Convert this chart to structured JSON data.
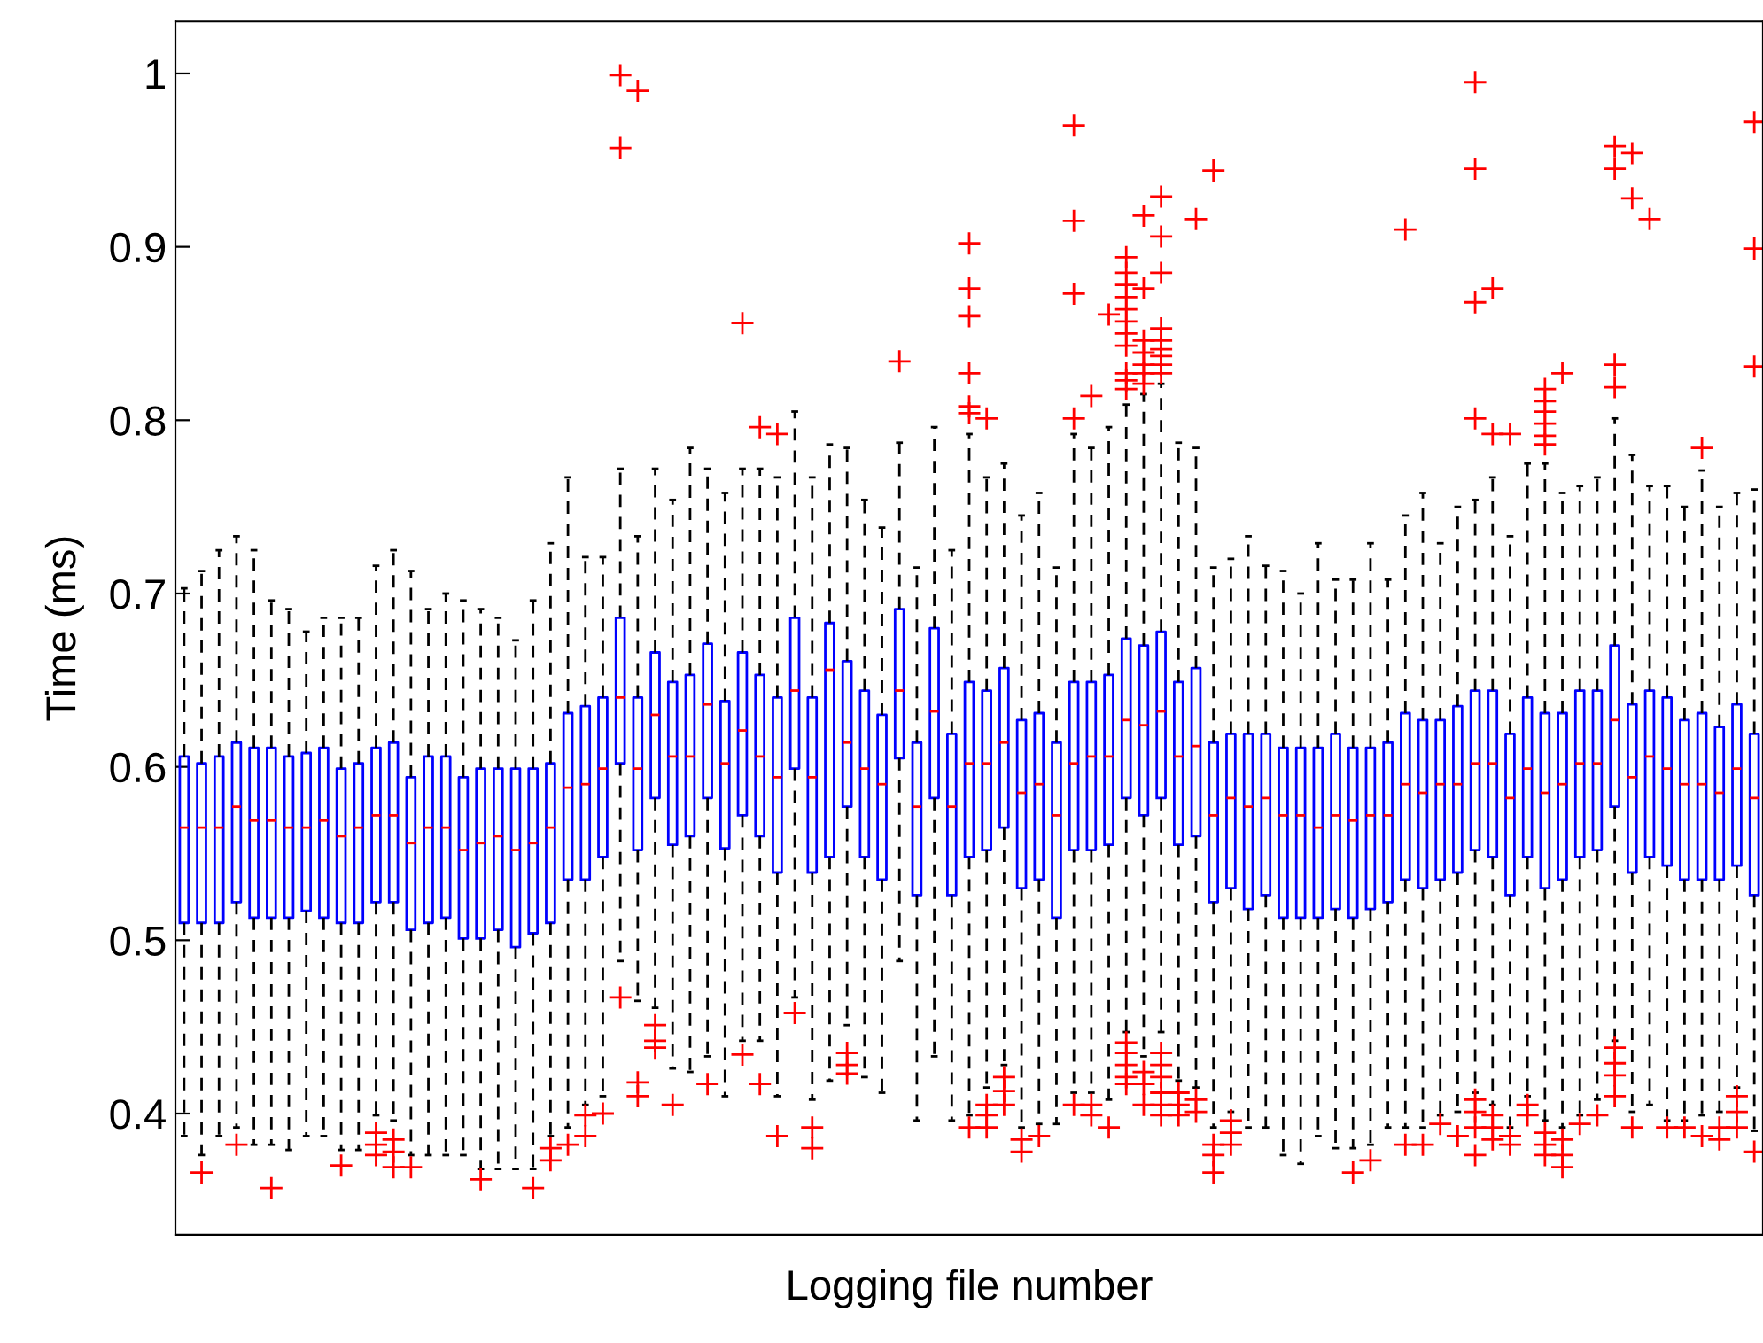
{
  "chart_data": {
    "type": "box",
    "xlabel": "Logging file number",
    "ylabel": "Time (ms)",
    "categories": [
      null,
      null,
      null,
      null,
      null,
      null,
      null,
      null,
      null,
      null,
      null,
      null,
      null,
      null,
      null,
      null,
      null,
      null,
      null,
      null,
      null,
      null,
      null,
      null,
      null,
      null,
      null,
      null,
      null,
      null,
      null,
      null,
      null,
      null,
      null,
      null,
      null,
      null,
      null,
      null,
      null,
      null,
      null,
      null,
      null,
      null,
      null,
      null,
      null,
      null,
      null,
      null,
      null,
      null,
      null,
      null,
      null,
      null,
      null,
      null,
      null,
      null,
      null,
      null,
      null,
      null,
      null,
      null,
      null,
      null,
      null,
      null,
      null,
      null,
      null,
      null,
      null,
      null,
      null,
      null,
      null,
      null,
      null,
      null,
      null,
      null,
      null,
      null,
      null,
      null,
      null
    ],
    "ylim": [
      0.33,
      1.03
    ],
    "yticks": [
      0.4,
      0.5,
      0.6,
      0.7,
      0.8,
      0.9,
      1
    ],
    "tick_labels": "y",
    "grid": false,
    "marker": "cross",
    "line_style": "dashed",
    "series": [
      {
        "color": "#0000ff",
        "boxes": [
          {
            "q3": 0.606,
            "q1": 0.51,
            "median": 0.565,
            "high": 0.703,
            "low": 0.387
          },
          {
            "q3": 0.602,
            "q1": 0.51,
            "median": 0.565,
            "high": 0.713,
            "low": 0.376,
            "outliers": [
              0.366
            ]
          },
          {
            "q3": 0.606,
            "q1": 0.51,
            "median": 0.565,
            "high": 0.725,
            "low": 0.387
          },
          {
            "q3": 0.614,
            "q1": 0.522,
            "median": 0.577,
            "high": 0.733,
            "low": 0.392,
            "outliers": [
              0.382
            ]
          },
          {
            "q3": 0.611,
            "q1": 0.513,
            "median": 0.569,
            "high": 0.725,
            "low": 0.382
          },
          {
            "q3": 0.611,
            "q1": 0.513,
            "median": 0.569,
            "high": 0.696,
            "low": 0.382,
            "outliers": [
              0.357
            ]
          },
          {
            "q3": 0.606,
            "q1": 0.513,
            "median": 0.565,
            "high": 0.691,
            "low": 0.379
          },
          {
            "q3": 0.608,
            "q1": 0.517,
            "median": 0.565,
            "high": 0.678,
            "low": 0.387
          },
          {
            "q3": 0.611,
            "q1": 0.513,
            "median": 0.569,
            "high": 0.686,
            "low": 0.387
          },
          {
            "q3": 0.599,
            "q1": 0.51,
            "median": 0.56,
            "high": 0.686,
            "low": 0.379,
            "outliers": [
              0.37
            ]
          },
          {
            "q3": 0.602,
            "q1": 0.51,
            "median": 0.565,
            "high": 0.686,
            "low": 0.379
          },
          {
            "q3": 0.611,
            "q1": 0.522,
            "median": 0.572,
            "high": 0.716,
            "low": 0.399,
            "outliers": [
              0.389,
              0.382,
              0.376
            ]
          },
          {
            "q3": 0.614,
            "q1": 0.522,
            "median": 0.572,
            "high": 0.725,
            "low": 0.396,
            "outliers": [
              0.385,
              0.378,
              0.369
            ]
          },
          {
            "q3": 0.594,
            "q1": 0.506,
            "median": 0.556,
            "high": 0.713,
            "low": 0.376,
            "outliers": [
              0.369
            ]
          },
          {
            "q3": 0.606,
            "q1": 0.51,
            "median": 0.565,
            "high": 0.691,
            "low": 0.376
          },
          {
            "q3": 0.606,
            "q1": 0.513,
            "median": 0.565,
            "high": 0.7,
            "low": 0.376
          },
          {
            "q3": 0.594,
            "q1": 0.501,
            "median": 0.552,
            "high": 0.696,
            "low": 0.376
          },
          {
            "q3": 0.599,
            "q1": 0.501,
            "median": 0.556,
            "high": 0.691,
            "low": 0.368,
            "outliers": [
              0.362
            ]
          },
          {
            "q3": 0.599,
            "q1": 0.506,
            "median": 0.56,
            "high": 0.686,
            "low": 0.368
          },
          {
            "q3": 0.599,
            "q1": 0.496,
            "median": 0.552,
            "high": 0.673,
            "low": 0.368
          },
          {
            "q3": 0.599,
            "q1": 0.504,
            "median": 0.556,
            "high": 0.696,
            "low": 0.368,
            "outliers": [
              0.357
            ]
          },
          {
            "q3": 0.602,
            "q1": 0.51,
            "median": 0.565,
            "high": 0.729,
            "low": 0.387,
            "outliers": [
              0.38,
              0.373
            ]
          },
          {
            "q3": 0.631,
            "q1": 0.535,
            "median": 0.588,
            "high": 0.767,
            "low": 0.392,
            "outliers": [
              0.382
            ]
          },
          {
            "q3": 0.635,
            "q1": 0.535,
            "median": 0.59,
            "high": 0.721,
            "low": 0.405,
            "outliers": [
              0.399,
              0.387
            ]
          },
          {
            "q3": 0.64,
            "q1": 0.548,
            "median": 0.599,
            "high": 0.721,
            "low": 0.41,
            "outliers": [
              0.4
            ]
          },
          {
            "q3": 0.686,
            "q1": 0.602,
            "median": 0.64,
            "high": 0.772,
            "low": 0.488,
            "outliers": [
              0.999,
              0.957,
              0.467
            ]
          },
          {
            "q3": 0.64,
            "q1": 0.552,
            "median": 0.599,
            "high": 0.733,
            "low": 0.465,
            "outliers": [
              0.99,
              0.418,
              0.41
            ]
          },
          {
            "q3": 0.666,
            "q1": 0.582,
            "median": 0.63,
            "high": 0.772,
            "low": 0.461,
            "outliers": [
              0.451,
              0.442,
              0.438
            ]
          },
          {
            "q3": 0.649,
            "q1": 0.555,
            "median": 0.606,
            "high": 0.754,
            "low": 0.426,
            "outliers": [
              0.405
            ]
          },
          {
            "q3": 0.653,
            "q1": 0.56,
            "median": 0.606,
            "high": 0.784,
            "low": 0.424
          },
          {
            "q3": 0.671,
            "q1": 0.582,
            "median": 0.636,
            "high": 0.772,
            "low": 0.433,
            "outliers": [
              0.417
            ]
          },
          {
            "q3": 0.638,
            "q1": 0.553,
            "median": 0.602,
            "high": 0.758,
            "low": 0.41
          },
          {
            "q3": 0.666,
            "q1": 0.572,
            "median": 0.621,
            "high": 0.772,
            "low": 0.442,
            "outliers": [
              0.856,
              0.434
            ]
          },
          {
            "q3": 0.653,
            "q1": 0.56,
            "median": 0.606,
            "high": 0.772,
            "low": 0.442,
            "outliers": [
              0.796,
              0.417
            ]
          },
          {
            "q3": 0.64,
            "q1": 0.539,
            "median": 0.594,
            "high": 0.767,
            "low": 0.41,
            "outliers": [
              0.792,
              0.387
            ]
          },
          {
            "q3": 0.686,
            "q1": 0.599,
            "median": 0.644,
            "high": 0.805,
            "low": 0.467,
            "outliers": [
              0.458
            ]
          },
          {
            "q3": 0.64,
            "q1": 0.539,
            "median": 0.594,
            "high": 0.767,
            "low": 0.408,
            "outliers": [
              0.392,
              0.38
            ]
          },
          {
            "q3": 0.683,
            "q1": 0.548,
            "median": 0.656,
            "high": 0.786,
            "low": 0.419
          },
          {
            "q3": 0.661,
            "q1": 0.577,
            "median": 0.614,
            "high": 0.784,
            "low": 0.451,
            "outliers": [
              0.435,
              0.428,
              0.423
            ]
          },
          {
            "q3": 0.644,
            "q1": 0.548,
            "median": 0.599,
            "high": 0.754,
            "low": 0.421
          },
          {
            "q3": 0.63,
            "q1": 0.535,
            "median": 0.59,
            "high": 0.738,
            "low": 0.412
          },
          {
            "q3": 0.691,
            "q1": 0.605,
            "median": 0.644,
            "high": 0.787,
            "low": 0.488,
            "outliers": [
              0.834
            ]
          },
          {
            "q3": 0.614,
            "q1": 0.526,
            "median": 0.577,
            "high": 0.715,
            "low": 0.396
          },
          {
            "q3": 0.68,
            "q1": 0.582,
            "median": 0.632,
            "high": 0.796,
            "low": 0.433
          },
          {
            "q3": 0.619,
            "q1": 0.526,
            "median": 0.577,
            "high": 0.725,
            "low": 0.396
          },
          {
            "q3": 0.649,
            "q1": 0.548,
            "median": 0.602,
            "high": 0.792,
            "low": 0.399,
            "outliers": [
              0.902,
              0.876,
              0.86,
              0.827,
              0.808,
              0.804,
              0.392
            ]
          },
          {
            "q3": 0.644,
            "q1": 0.552,
            "median": 0.602,
            "high": 0.767,
            "low": 0.415,
            "outliers": [
              0.801,
              0.405,
              0.399,
              0.392
            ]
          },
          {
            "q3": 0.657,
            "q1": 0.565,
            "median": 0.614,
            "high": 0.775,
            "low": 0.428,
            "outliers": [
              0.421,
              0.413,
              0.405
            ]
          },
          {
            "q3": 0.627,
            "q1": 0.53,
            "median": 0.585,
            "high": 0.745,
            "low": 0.392,
            "outliers": [
              0.385,
              0.378
            ]
          },
          {
            "q3": 0.631,
            "q1": 0.535,
            "median": 0.59,
            "high": 0.758,
            "low": 0.394,
            "outliers": [
              0.387
            ]
          },
          {
            "q3": 0.614,
            "q1": 0.513,
            "median": 0.572,
            "high": 0.715,
            "low": 0.394
          },
          {
            "q3": 0.649,
            "q1": 0.552,
            "median": 0.602,
            "high": 0.792,
            "low": 0.412,
            "outliers": [
              0.97,
              0.915,
              0.873,
              0.801,
              0.405
            ]
          },
          {
            "q3": 0.649,
            "q1": 0.552,
            "median": 0.606,
            "high": 0.784,
            "low": 0.412,
            "outliers": [
              0.814,
              0.405,
              0.399
            ]
          },
          {
            "q3": 0.653,
            "q1": 0.555,
            "median": 0.606,
            "high": 0.796,
            "low": 0.408,
            "outliers": [
              0.861,
              0.392
            ]
          },
          {
            "q3": 0.674,
            "q1": 0.582,
            "median": 0.627,
            "high": 0.809,
            "low": 0.447,
            "outliers": [
              0.894,
              0.885,
              0.878,
              0.871,
              0.864,
              0.857,
              0.85,
              0.843,
              0.827,
              0.823,
              0.818,
              0.441,
              0.435,
              0.428,
              0.421,
              0.417
            ]
          },
          {
            "q3": 0.67,
            "q1": 0.572,
            "median": 0.624,
            "high": 0.815,
            "low": 0.433,
            "outliers": [
              0.918,
              0.876,
              0.846,
              0.839,
              0.832,
              0.827,
              0.821,
              0.424,
              0.417,
              0.405
            ]
          },
          {
            "q3": 0.678,
            "q1": 0.582,
            "median": 0.632,
            "high": 0.821,
            "low": 0.447,
            "outliers": [
              0.929,
              0.906,
              0.885,
              0.853,
              0.846,
              0.841,
              0.837,
              0.832,
              0.827,
              0.435,
              0.428,
              0.421,
              0.412,
              0.405,
              0.399
            ]
          },
          {
            "q3": 0.649,
            "q1": 0.555,
            "median": 0.606,
            "high": 0.787,
            "low": 0.419,
            "outliers": [
              0.412,
              0.405,
              0.399
            ]
          },
          {
            "q3": 0.657,
            "q1": 0.56,
            "median": 0.612,
            "high": 0.784,
            "low": 0.415,
            "outliers": [
              0.916,
              0.408,
              0.401
            ]
          },
          {
            "q3": 0.614,
            "q1": 0.522,
            "median": 0.572,
            "high": 0.715,
            "low": 0.392,
            "outliers": [
              0.944,
              0.382,
              0.376,
              0.366
            ]
          },
          {
            "q3": 0.619,
            "q1": 0.53,
            "median": 0.582,
            "high": 0.72,
            "low": 0.401,
            "outliers": [
              0.396,
              0.389,
              0.382
            ]
          },
          {
            "q3": 0.619,
            "q1": 0.518,
            "median": 0.577,
            "high": 0.733,
            "low": 0.392
          },
          {
            "q3": 0.619,
            "q1": 0.526,
            "median": 0.582,
            "high": 0.716,
            "low": 0.392
          },
          {
            "q3": 0.611,
            "q1": 0.513,
            "median": 0.572,
            "high": 0.713,
            "low": 0.376
          },
          {
            "q3": 0.611,
            "q1": 0.513,
            "median": 0.572,
            "high": 0.7,
            "low": 0.371
          },
          {
            "q3": 0.611,
            "q1": 0.513,
            "median": 0.565,
            "high": 0.729,
            "low": 0.387
          },
          {
            "q3": 0.619,
            "q1": 0.518,
            "median": 0.572,
            "high": 0.708,
            "low": 0.38
          },
          {
            "q3": 0.611,
            "q1": 0.513,
            "median": 0.569,
            "high": 0.708,
            "low": 0.38,
            "outliers": [
              0.366
            ]
          },
          {
            "q3": 0.611,
            "q1": 0.518,
            "median": 0.572,
            "high": 0.729,
            "low": 0.382,
            "outliers": [
              0.373
            ]
          },
          {
            "q3": 0.614,
            "q1": 0.522,
            "median": 0.572,
            "high": 0.708,
            "low": 0.392
          },
          {
            "q3": 0.631,
            "q1": 0.535,
            "median": 0.59,
            "high": 0.745,
            "low": 0.392,
            "outliers": [
              0.91,
              0.382
            ]
          },
          {
            "q3": 0.627,
            "q1": 0.53,
            "median": 0.585,
            "high": 0.758,
            "low": 0.392,
            "outliers": [
              0.382
            ]
          },
          {
            "q3": 0.627,
            "q1": 0.535,
            "median": 0.59,
            "high": 0.729,
            "low": 0.399,
            "outliers": [
              0.394
            ]
          },
          {
            "q3": 0.635,
            "q1": 0.539,
            "median": 0.59,
            "high": 0.75,
            "low": 0.401,
            "outliers": [
              0.387
            ]
          },
          {
            "q3": 0.644,
            "q1": 0.552,
            "median": 0.602,
            "high": 0.754,
            "low": 0.412,
            "outliers": [
              0.995,
              0.945,
              0.868,
              0.801,
              0.408,
              0.401,
              0.392,
              0.376
            ]
          },
          {
            "q3": 0.644,
            "q1": 0.548,
            "median": 0.602,
            "high": 0.767,
            "low": 0.405,
            "outliers": [
              0.876,
              0.792,
              0.399,
              0.392,
              0.385
            ]
          },
          {
            "q3": 0.619,
            "q1": 0.526,
            "median": 0.582,
            "high": 0.733,
            "low": 0.392,
            "outliers": [
              0.792,
              0.387,
              0.382
            ]
          },
          {
            "q3": 0.64,
            "q1": 0.548,
            "median": 0.599,
            "high": 0.775,
            "low": 0.41,
            "outliers": [
              0.405,
              0.399
            ]
          },
          {
            "q3": 0.631,
            "q1": 0.53,
            "median": 0.585,
            "high": 0.775,
            "low": 0.396,
            "outliers": [
              0.818,
              0.811,
              0.805,
              0.798,
              0.791,
              0.786,
              0.389,
              0.382,
              0.376
            ]
          },
          {
            "q3": 0.631,
            "q1": 0.535,
            "median": 0.59,
            "high": 0.758,
            "low": 0.392,
            "outliers": [
              0.827,
              0.385,
              0.376,
              0.369
            ]
          },
          {
            "q3": 0.644,
            "q1": 0.548,
            "median": 0.602,
            "high": 0.762,
            "low": 0.399,
            "outliers": [
              0.394
            ]
          },
          {
            "q3": 0.644,
            "q1": 0.552,
            "median": 0.602,
            "high": 0.767,
            "low": 0.408,
            "outliers": [
              0.399
            ]
          },
          {
            "q3": 0.67,
            "q1": 0.577,
            "median": 0.627,
            "high": 0.801,
            "low": 0.442,
            "outliers": [
              0.958,
              0.945,
              0.832,
              0.819,
              0.438,
              0.429,
              0.422,
              0.41
            ]
          },
          {
            "q3": 0.636,
            "q1": 0.539,
            "median": 0.594,
            "high": 0.78,
            "low": 0.401,
            "outliers": [
              0.954,
              0.928,
              0.392
            ]
          },
          {
            "q3": 0.644,
            "q1": 0.548,
            "median": 0.606,
            "high": 0.762,
            "low": 0.405,
            "outliers": [
              0.916
            ]
          },
          {
            "q3": 0.64,
            "q1": 0.543,
            "median": 0.599,
            "high": 0.762,
            "low": 0.396,
            "outliers": [
              0.392
            ]
          },
          {
            "q3": 0.627,
            "q1": 0.535,
            "median": 0.59,
            "high": 0.75,
            "low": 0.396,
            "outliers": [
              0.392
            ]
          },
          {
            "q3": 0.631,
            "q1": 0.535,
            "median": 0.59,
            "high": 0.771,
            "low": 0.399,
            "outliers": [
              0.784,
              0.387
            ]
          },
          {
            "q3": 0.623,
            "q1": 0.535,
            "median": 0.585,
            "high": 0.75,
            "low": 0.401,
            "outliers": [
              0.392,
              0.385
            ]
          },
          {
            "q3": 0.636,
            "q1": 0.543,
            "median": 0.599,
            "high": 0.758,
            "low": 0.415,
            "outliers": [
              0.41,
              0.401,
              0.392
            ]
          },
          {
            "q3": 0.619,
            "q1": 0.526,
            "median": 0.582,
            "high": 0.76,
            "low": 0.39,
            "outliers": [
              0.972,
              0.899,
              0.831,
              0.378
            ]
          }
        ]
      }
    ]
  }
}
